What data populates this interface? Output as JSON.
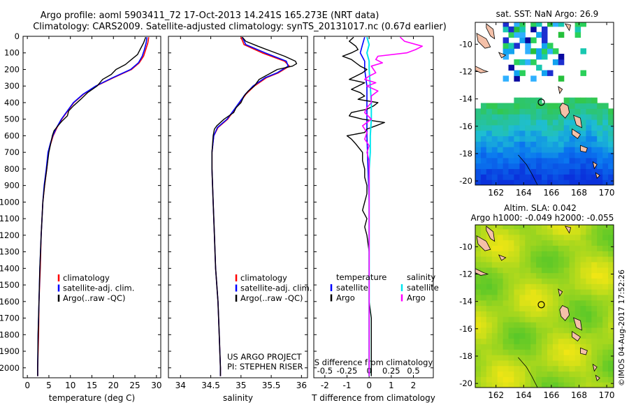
{
  "header": {
    "line1": "Argo profile: aoml 5903411_72 17-Oct-2013 14.241S 165.273E (NRT data)",
    "line2": "Climatology: CARS2009. Satellite-adjusted climatology: synTS_20131017.nc (0.67d earlier)"
  },
  "credit": "US ARGO PROJECT",
  "pi": "PI: STEPHEN RISER",
  "watermark": "©IMOS 04-Aug-2017 17:52:26",
  "chart_data": [
    {
      "type": "line",
      "panel": "temperature",
      "xlabel": "temperature (deg C)",
      "xlim": [
        -1,
        31
      ],
      "xticks": [
        0,
        5,
        10,
        15,
        20,
        25,
        30
      ],
      "ylim": [
        2060,
        0
      ],
      "yticks": [
        0,
        100,
        200,
        300,
        400,
        500,
        600,
        700,
        800,
        900,
        1000,
        1100,
        1200,
        1300,
        1400,
        1500,
        1600,
        1700,
        1800,
        1900,
        2000
      ],
      "legend": [
        "climatology",
        "satellite-adj. clim.",
        "Argo(..raw -QC)"
      ],
      "legend_position": "lower-left",
      "series": [
        {
          "name": "climatology",
          "color": "#ff0000",
          "y": [
            5,
            40,
            80,
            120,
            160,
            200,
            250,
            300,
            350,
            400,
            450,
            500,
            550,
            600,
            650,
            700,
            800,
            900,
            1000,
            1200,
            1400,
            1600,
            1800,
            2000,
            2050
          ],
          "x": [
            28.2,
            28.0,
            27.5,
            27.0,
            26.0,
            24.2,
            20.0,
            16.0,
            13.0,
            10.8,
            9.4,
            8.0,
            6.9,
            6.0,
            5.4,
            4.9,
            4.5,
            4.0,
            3.6,
            3.2,
            3.0,
            2.7,
            2.6,
            2.4,
            2.4
          ]
        },
        {
          "name": "satellite-adj. clim.",
          "color": "#0000ff",
          "y": [
            5,
            40,
            80,
            120,
            160,
            200,
            250,
            300,
            350,
            400,
            450,
            500,
            550,
            600,
            650,
            700,
            800,
            900,
            1000,
            1200,
            1400,
            1600,
            1800,
            2000,
            2050
          ],
          "x": [
            27.8,
            27.6,
            27.2,
            26.7,
            25.8,
            24.0,
            19.8,
            15.9,
            12.9,
            10.7,
            9.3,
            7.9,
            6.8,
            5.9,
            5.3,
            4.8,
            4.4,
            3.9,
            3.6,
            3.2,
            2.9,
            2.7,
            2.5,
            2.4,
            2.4
          ]
        },
        {
          "name": "Argo(..raw -QC)",
          "color": "#000000",
          "y": [
            5,
            40,
            80,
            110,
            140,
            170,
            200,
            230,
            260,
            300,
            340,
            380,
            420,
            450,
            480,
            510,
            540,
            570,
            600,
            650,
            700,
            800,
            900,
            1000,
            1200,
            1400,
            1600,
            1800,
            2000,
            2050
          ],
          "x": [
            27.5,
            27.0,
            26.2,
            25.6,
            24.2,
            22.8,
            20.6,
            19.5,
            17.5,
            16.2,
            14.0,
            12.4,
            10.7,
            9.6,
            9.3,
            8.1,
            7.1,
            6.2,
            5.8,
            5.4,
            5.0,
            4.5,
            4.0,
            3.6,
            3.2,
            2.9,
            2.7,
            2.5,
            2.4,
            2.4
          ]
        }
      ]
    },
    {
      "type": "line",
      "panel": "salinity",
      "xlabel": "salinity",
      "xlim": [
        33.8,
        36.1
      ],
      "xticks": [
        34,
        34.5,
        35,
        35.5,
        36
      ],
      "ylim": [
        2060,
        0
      ],
      "legend": [
        "climatology",
        "satellite-adj. clim.",
        "Argo(..raw -QC)"
      ],
      "legend_position": "lower-right",
      "series": [
        {
          "name": "climatology",
          "color": "#ff0000",
          "y": [
            5,
            50,
            100,
            150,
            180,
            220,
            250,
            300,
            350,
            400,
            450,
            500,
            550,
            600,
            700,
            800,
            1000,
            1200,
            1400,
            1600,
            1800,
            2000,
            2050
          ],
          "x": [
            35.0,
            35.05,
            35.35,
            35.72,
            35.8,
            35.62,
            35.42,
            35.22,
            35.08,
            34.98,
            34.88,
            34.78,
            34.62,
            34.55,
            34.52,
            34.52,
            34.54,
            34.56,
            34.58,
            34.62,
            34.64,
            34.66,
            34.66
          ]
        },
        {
          "name": "satellite-adj. clim.",
          "color": "#0000ff",
          "y": [
            5,
            50,
            100,
            150,
            180,
            220,
            250,
            300,
            350,
            400,
            450,
            500,
            550,
            600,
            700,
            800,
            1000,
            1200,
            1400,
            1600,
            1800,
            2000,
            2050
          ],
          "x": [
            35.02,
            35.08,
            35.4,
            35.75,
            35.78,
            35.6,
            35.4,
            35.2,
            35.07,
            34.97,
            34.87,
            34.77,
            34.61,
            34.55,
            34.52,
            34.52,
            34.54,
            34.56,
            34.58,
            34.62,
            34.64,
            34.66,
            34.66
          ]
        },
        {
          "name": "Argo(..raw -QC)",
          "color": "#000000",
          "y": [
            5,
            30,
            60,
            90,
            120,
            150,
            165,
            180,
            200,
            230,
            260,
            300,
            330,
            360,
            400,
            430,
            460,
            500,
            540,
            560,
            600,
            700,
            800,
            1000,
            1200,
            1400,
            1600,
            1800,
            2000,
            2050
          ],
          "x": [
            35.02,
            35.08,
            35.28,
            35.5,
            35.72,
            35.9,
            35.92,
            35.85,
            35.6,
            35.45,
            35.3,
            35.22,
            35.12,
            35.05,
            35.0,
            34.92,
            34.88,
            34.72,
            34.6,
            34.56,
            34.54,
            34.52,
            34.52,
            34.54,
            34.56,
            34.58,
            34.62,
            34.64,
            34.66,
            34.66
          ]
        }
      ]
    },
    {
      "type": "line",
      "panel": "difference",
      "xlabel": "T difference from climatology",
      "xlabel_top": "S difference from climatology",
      "xlim": [
        -2.5,
        2.9
      ],
      "xticks": [
        -2,
        -1,
        0,
        1,
        2
      ],
      "xticks_top": [
        {
          "at": -2,
          "label": "-0.5"
        },
        {
          "at": -1,
          "label": "-0.25"
        },
        {
          "at": 0,
          "label": "0"
        },
        {
          "at": 1,
          "label": "0.25"
        },
        {
          "at": 2,
          "label": "0.5"
        }
      ],
      "ylim": [
        2060,
        0
      ],
      "legend_temperature": {
        "title": "temperature",
        "items": [
          "satellite",
          "Argo"
        ]
      },
      "legend_salinity": {
        "title": "salinity",
        "items": [
          "satellite",
          "Argo"
        ]
      },
      "series": [
        {
          "name": "temperature satellite",
          "color": "#0000ff",
          "y": [
            5,
            50,
            100,
            150,
            200,
            300,
            400,
            500,
            600,
            800,
            1000,
            2050
          ],
          "x": [
            -0.2,
            -0.3,
            -0.4,
            -0.2,
            -0.2,
            -0.1,
            -0.1,
            -0.1,
            -0.1,
            -0.05,
            0,
            0
          ]
        },
        {
          "name": "temperature Argo",
          "color": "#000000",
          "y": [
            5,
            30,
            60,
            80,
            100,
            120,
            140,
            160,
            180,
            200,
            220,
            240,
            260,
            280,
            300,
            320,
            340,
            360,
            380,
            400,
            420,
            440,
            460,
            480,
            500,
            520,
            540,
            560,
            580,
            600,
            620,
            650,
            700,
            750,
            800,
            850,
            900,
            950,
            1000,
            1050,
            1100,
            1150,
            1200,
            1300,
            1400,
            1500,
            1600,
            1700,
            1800,
            1900,
            2000,
            2050
          ],
          "x": [
            -0.7,
            -0.9,
            -0.6,
            -0.5,
            -0.8,
            -1.2,
            -0.8,
            -0.6,
            -0.4,
            -0.1,
            -0.3,
            -0.6,
            -0.9,
            -0.2,
            -0.5,
            -0.8,
            -0.4,
            -0.2,
            -0.5,
            0.4,
            0.2,
            -0.1,
            -0.8,
            -0.9,
            -0.3,
            0.7,
            0.3,
            -0.1,
            -0.2,
            -1.0,
            -0.8,
            -0.6,
            -0.3,
            -0.3,
            -0.2,
            -0.2,
            -0.1,
            -0.1,
            -0.2,
            -0.3,
            -0.1,
            -0.2,
            -0.1,
            0,
            0,
            0,
            0,
            0.1,
            0.1,
            0.1,
            0.1,
            0.1
          ]
        },
        {
          "name": "salinity satellite",
          "color": "#00e5ee",
          "y": [
            5,
            50,
            100,
            150,
            200,
            300,
            400,
            500,
            600,
            700,
            800,
            1000,
            2050
          ],
          "x": [
            -0.1,
            0,
            -0.1,
            0,
            0,
            0.05,
            0.1,
            0.1,
            0.05,
            0.05,
            0,
            0,
            0
          ]
        },
        {
          "name": "salinity Argo",
          "color": "#ff00ff",
          "y": [
            5,
            30,
            60,
            80,
            100,
            120,
            140,
            160,
            180,
            200,
            220,
            240,
            260,
            280,
            300,
            330,
            360,
            400,
            430,
            460,
            500,
            540,
            580,
            620,
            660,
            700,
            750,
            800,
            900,
            1000,
            1200,
            1500,
            2050
          ],
          "x": [
            1.4,
            1.6,
            2.4,
            2.1,
            1.7,
            0.4,
            0.3,
            0.6,
            0.1,
            0.2,
            0.3,
            0,
            -0.2,
            0.3,
            -0.1,
            0.4,
            0.1,
            0.1,
            -0.1,
            -0.2,
            0.1,
            -0.3,
            -0.1,
            -0.2,
            0,
            -0.1,
            0,
            0,
            0,
            0,
            0,
            0,
            0
          ]
        }
      ]
    },
    {
      "type": "heatmap",
      "panel": "sst-map",
      "title": "sat. SST: NaN  Argo: 26.9",
      "xlim": [
        160.5,
        170.5
      ],
      "ylim": [
        -20.3,
        -8.4
      ],
      "xticks": [
        162,
        164,
        166,
        168,
        170
      ],
      "yticks": [
        -10,
        -12,
        -14,
        -16,
        -18,
        -20
      ],
      "marker": {
        "lon": 165.273,
        "lat": -14.241
      }
    },
    {
      "type": "heatmap",
      "panel": "sla-map",
      "title": "Altim. SLA: 0.042",
      "subtitle": "Argo h1000: -0.049  h2000: -0.055",
      "xlim": [
        160.5,
        170.5
      ],
      "ylim": [
        -20.3,
        -8.4
      ],
      "xticks": [
        162,
        164,
        166,
        168,
        170
      ],
      "yticks": [
        -10,
        -12,
        -14,
        -16,
        -18,
        -20
      ],
      "marker": {
        "lon": 165.273,
        "lat": -14.241
      }
    }
  ]
}
